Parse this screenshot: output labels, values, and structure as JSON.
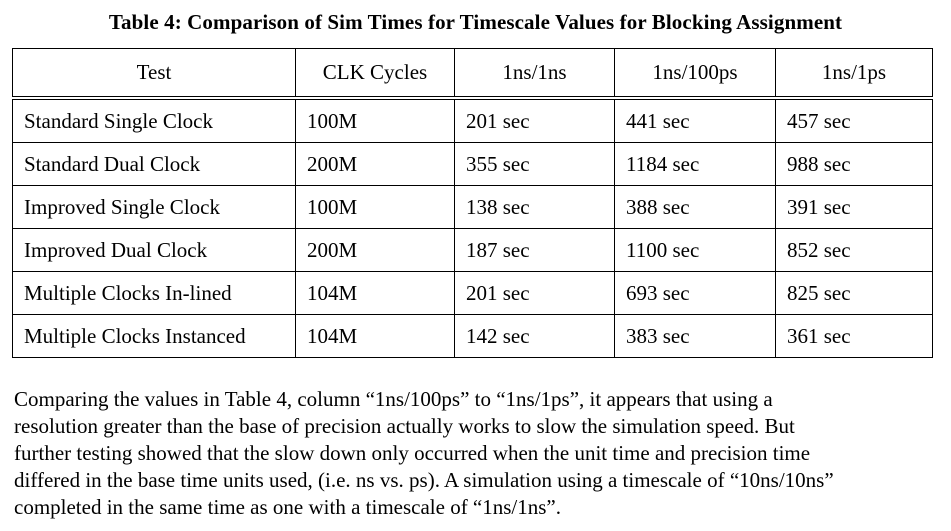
{
  "caption": "Table 4: Comparison of Sim Times for Timescale Values for Blocking Assignment",
  "table": {
    "headers": [
      "Test",
      "CLK Cycles",
      "1ns/1ns",
      "1ns/100ps",
      "1ns/1ps"
    ],
    "rows": [
      [
        "Standard Single Clock",
        "100M",
        "201 sec",
        "441 sec",
        "457 sec"
      ],
      [
        "Standard Dual Clock",
        "200M",
        "355 sec",
        "1184 sec",
        "988 sec"
      ],
      [
        "Improved Single Clock",
        "100M",
        "138 sec",
        "388 sec",
        "391 sec"
      ],
      [
        "Improved Dual Clock",
        "200M",
        "187 sec",
        "1100 sec",
        "852 sec"
      ],
      [
        "Multiple Clocks In-lined",
        "104M",
        "201 sec",
        "693 sec",
        "825 sec"
      ],
      [
        "Multiple Clocks Instanced",
        "104M",
        "142 sec",
        "383 sec",
        "361 sec"
      ]
    ]
  },
  "paragraph": {
    "lines": [
      "Comparing the values in Table 4, column “1ns/100ps” to “1ns/1ps”, it appears that using a",
      "resolution greater than the base of precision actually works to slow the simulation speed. But",
      "further testing showed that the slow down only occurred when the unit time and precision time",
      "differed in the base time units used, (i.e. ns vs. ps). A simulation using a timescale of “10ns/10ns”",
      "completed in the same time as one with a timescale of “1ns/1ns”."
    ]
  }
}
